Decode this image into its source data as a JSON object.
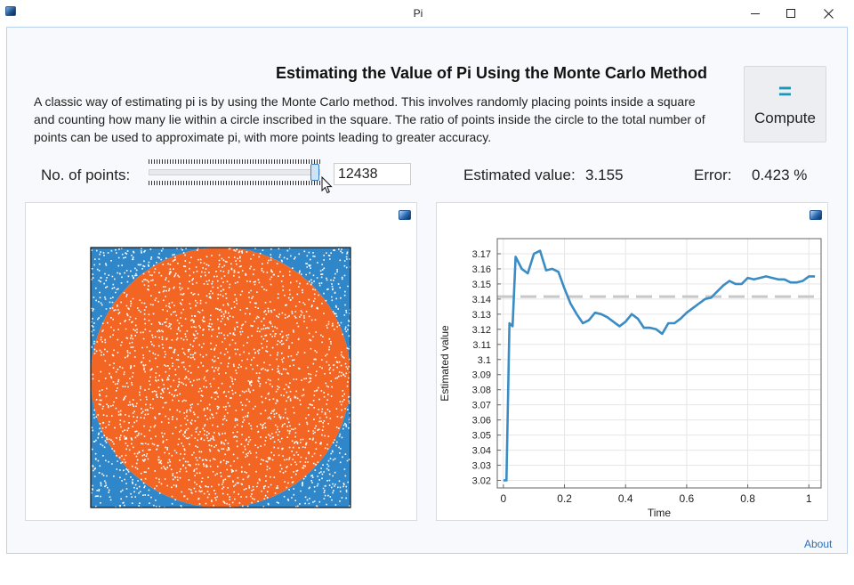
{
  "window": {
    "title": "Pi",
    "app_icon": "app-icon",
    "minimize_icon": "minimize-icon",
    "maximize_icon": "maximize-icon",
    "close_icon": "close-icon"
  },
  "header": {
    "title": "Estimating the Value of Pi Using the Monte Carlo Method",
    "description": "A classic way of estimating pi is by using the Monte Carlo method. This involves randomly placing points inside a square and counting how many lie within a circle inscribed in the square. The ratio of points inside the circle to the total number of points can be used to approximate pi, with more points leading to greater accuracy."
  },
  "compute": {
    "icon": "equals-icon",
    "icon_glyph": "=",
    "label": "Compute"
  },
  "controls": {
    "points_label": "No. of points:",
    "points_value": "12438",
    "slider_fraction": 0.97,
    "estimated_label": "Estimated value:",
    "estimated_value": "3.155",
    "error_label": "Error:",
    "error_value": "0.423 %"
  },
  "footer": {
    "about_label": "About"
  },
  "colors": {
    "inside": "#f26522",
    "outside": "#2f87c9",
    "line": "#3a8cc4",
    "reference": "#c8c8c8",
    "accent": "#1c95b8"
  },
  "scatter_plot": {
    "type": "scatter",
    "series": [
      {
        "name": "",
        "points_description": "inside circle",
        "color": "#f26522"
      },
      {
        "name": "",
        "points_description": "outside circle",
        "color": "#2f87c9"
      }
    ],
    "xlim": [
      -1,
      1
    ],
    "ylim": [
      -1,
      1
    ]
  },
  "chart_data": {
    "type": "line",
    "title": "",
    "xlabel": "Time",
    "ylabel": "Estimated value",
    "xlim": [
      -0.02,
      1.04
    ],
    "ylim": [
      3.015,
      3.18
    ],
    "x_ticks": [
      "0",
      "0.2",
      "0.4",
      "0.6",
      "0.8",
      "1"
    ],
    "y_ticks": [
      "3.02",
      "3.03",
      "3.04",
      "3.05",
      "3.06",
      "3.07",
      "3.08",
      "3.09",
      "3.1",
      "3.11",
      "3.12",
      "3.13",
      "3.14",
      "3.15",
      "3.16",
      "3.17"
    ],
    "grid": true,
    "series": [
      {
        "name": "",
        "x": [
          0,
          0.01,
          0.02,
          0.03,
          0.04,
          0.06,
          0.08,
          0.1,
          0.12,
          0.14,
          0.16,
          0.18,
          0.2,
          0.22,
          0.24,
          0.26,
          0.28,
          0.3,
          0.32,
          0.34,
          0.36,
          0.38,
          0.4,
          0.42,
          0.44,
          0.46,
          0.48,
          0.5,
          0.52,
          0.54,
          0.56,
          0.58,
          0.6,
          0.62,
          0.64,
          0.66,
          0.68,
          0.7,
          0.72,
          0.74,
          0.76,
          0.78,
          0.8,
          0.82,
          0.84,
          0.86,
          0.88,
          0.9,
          0.92,
          0.94,
          0.96,
          0.98,
          1.0,
          1.02
        ],
        "y": [
          3.02,
          3.02,
          3.124,
          3.122,
          3.168,
          3.16,
          3.157,
          3.17,
          3.172,
          3.159,
          3.16,
          3.158,
          3.147,
          3.137,
          3.13,
          3.124,
          3.126,
          3.131,
          3.13,
          3.128,
          3.125,
          3.122,
          3.125,
          3.13,
          3.127,
          3.121,
          3.121,
          3.12,
          3.117,
          3.124,
          3.124,
          3.127,
          3.131,
          3.134,
          3.137,
          3.14,
          3.141,
          3.145,
          3.149,
          3.152,
          3.15,
          3.15,
          3.154,
          3.153,
          3.154,
          3.155,
          3.154,
          3.153,
          3.153,
          3.151,
          3.151,
          3.152,
          3.155,
          3.155
        ],
        "color": "#3a8cc4"
      },
      {
        "name": "",
        "x": [
          -0.02,
          1.04
        ],
        "y": [
          3.1416,
          3.1416
        ],
        "style": "dashed",
        "color": "#c8c8c8"
      }
    ]
  }
}
